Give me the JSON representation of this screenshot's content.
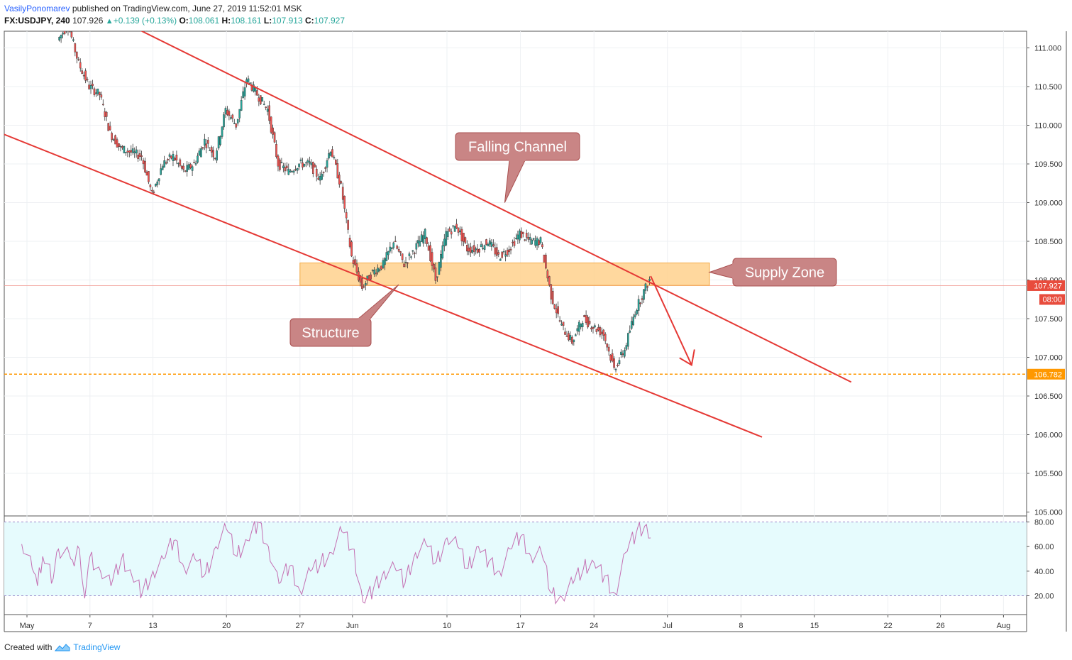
{
  "header": {
    "author": "VasilyPonomarev",
    "published_text": "published on TradingView.com, June 27, 2019 11:52:01 MSK",
    "symbol": "FX:USDJPY, 240",
    "last": "107.926",
    "change": "+0.139 (+0.13%)",
    "o_label": "O:",
    "o_value": "108.061",
    "h_label": "H:",
    "h_value": "108.161",
    "l_label": "L:",
    "l_value": "107.913",
    "c_label": "C:",
    "c_value": "107.927"
  },
  "footer": {
    "created_with": "Created with",
    "brand": "TradingView"
  },
  "colors": {
    "up": "#26a69a",
    "down": "#ef5350",
    "channel": "#e53935",
    "supply_fill": "#ffd699",
    "supply_stroke": "#f4a63a",
    "callout_fill": "#c98585",
    "callout_stroke": "#a94f4f",
    "rsi_line": "#c46fb2",
    "rsi_band": "#e6fbfd",
    "dotted": "#ff9800",
    "price_tag": "#e84c3d"
  },
  "chart_data": {
    "type": "candlestick",
    "symbol": "FX:USDJPY",
    "timeframe": "240",
    "y_axis": {
      "min": 105.0,
      "max": 111.2,
      "ticks": [
        "111.000",
        "110.500",
        "110.000",
        "109.500",
        "109.000",
        "108.500",
        "108.000",
        "107.500",
        "107.000",
        "106.500",
        "106.000",
        "105.500",
        "105.000"
      ]
    },
    "x_axis": {
      "labels": [
        {
          "text": "May",
          "day": 0
        },
        {
          "text": "7",
          "day": 6
        },
        {
          "text": "13",
          "day": 12
        },
        {
          "text": "20",
          "day": 19
        },
        {
          "text": "27",
          "day": 26
        },
        {
          "text": "Jun",
          "day": 31
        },
        {
          "text": "10",
          "day": 40
        },
        {
          "text": "17",
          "day": 47
        },
        {
          "text": "24",
          "day": 54
        },
        {
          "text": "Jul",
          "day": 61
        },
        {
          "text": "8",
          "day": 68
        },
        {
          "text": "15",
          "day": 75
        },
        {
          "text": "22",
          "day": 82
        },
        {
          "text": "26",
          "day": 87
        },
        {
          "text": "Aug",
          "day": 93
        }
      ]
    },
    "price_path": [
      [
        3,
        111.1
      ],
      [
        4,
        111.3
      ],
      [
        5,
        110.8
      ],
      [
        6,
        110.5
      ],
      [
        7,
        110.4
      ],
      [
        8,
        109.9
      ],
      [
        9,
        109.7
      ],
      [
        11,
        109.6
      ],
      [
        12,
        109.1
      ],
      [
        13,
        109.5
      ],
      [
        14,
        109.6
      ],
      [
        15,
        109.4
      ],
      [
        16,
        109.5
      ],
      [
        17,
        109.8
      ],
      [
        18,
        109.6
      ],
      [
        19,
        110.2
      ],
      [
        20,
        110.0
      ],
      [
        21,
        110.6
      ],
      [
        22,
        110.4
      ],
      [
        23,
        110.2
      ],
      [
        24,
        109.5
      ],
      [
        25,
        109.4
      ],
      [
        26,
        109.5
      ],
      [
        27,
        109.5
      ],
      [
        28,
        109.3
      ],
      [
        29,
        109.7
      ],
      [
        30,
        109.2
      ],
      [
        31,
        108.3
      ],
      [
        32,
        107.9
      ],
      [
        33,
        108.1
      ],
      [
        34,
        108.2
      ],
      [
        35,
        108.5
      ],
      [
        36,
        108.2
      ],
      [
        37,
        108.4
      ],
      [
        38,
        108.6
      ],
      [
        39,
        108.0
      ],
      [
        40,
        108.6
      ],
      [
        41,
        108.7
      ],
      [
        42,
        108.4
      ],
      [
        43,
        108.4
      ],
      [
        44,
        108.5
      ],
      [
        45,
        108.3
      ],
      [
        46,
        108.4
      ],
      [
        47,
        108.6
      ],
      [
        48,
        108.5
      ],
      [
        49,
        108.5
      ],
      [
        50,
        107.8
      ],
      [
        51,
        107.4
      ],
      [
        52,
        107.2
      ],
      [
        53,
        107.5
      ],
      [
        54,
        107.4
      ],
      [
        55,
        107.3
      ],
      [
        56,
        106.85
      ],
      [
        57,
        107.1
      ],
      [
        58,
        107.6
      ],
      [
        59,
        107.9
      ],
      [
        59.4,
        108.0
      ]
    ],
    "last_price": "107.927",
    "countdown": "08:00",
    "support_price": "106.782",
    "falling_channel": {
      "upper": {
        "from": [
          10,
          111.28
        ],
        "to": [
          78.5,
          106.68
        ]
      },
      "lower": {
        "from": [
          -2.5,
          109.9
        ],
        "to": [
          70,
          105.97
        ]
      }
    },
    "supply_zone": {
      "from_day": 26,
      "to_day": 65,
      "top": 108.22,
      "bottom": 107.93
    },
    "projection_arrow": {
      "from": [
        59.4,
        108.05
      ],
      "to": [
        63.3,
        106.9
      ]
    },
    "annotations": [
      {
        "text": "Falling Channel",
        "anchor": [
          45.5,
          109.0
        ]
      },
      {
        "text": "Supply Zone",
        "anchor": [
          65,
          108.1
        ]
      },
      {
        "text": "Structure",
        "anchor": [
          35.4,
          107.94
        ]
      }
    ],
    "rsi": {
      "bands": [
        20,
        80
      ],
      "ticks": [
        "80.00",
        "60.00",
        "40.00",
        "20.00"
      ],
      "path": [
        [
          -0.5,
          62
        ],
        [
          0.5,
          42
        ],
        [
          1,
          28
        ],
        [
          1.5,
          52
        ],
        [
          2.5,
          34
        ],
        [
          3,
          58
        ],
        [
          4,
          55
        ],
        [
          4.5,
          44
        ],
        [
          5,
          58
        ],
        [
          5.5,
          18
        ],
        [
          6,
          52
        ],
        [
          7,
          40
        ],
        [
          8,
          28
        ],
        [
          9,
          50
        ],
        [
          10,
          36
        ],
        [
          11,
          23
        ],
        [
          12,
          40
        ],
        [
          13,
          50
        ],
        [
          14,
          65
        ],
        [
          15,
          42
        ],
        [
          16,
          50
        ],
        [
          17,
          38
        ],
        [
          18,
          60
        ],
        [
          19,
          74
        ],
        [
          20,
          52
        ],
        [
          21,
          65
        ],
        [
          22,
          80
        ],
        [
          23,
          60
        ],
        [
          24,
          30
        ],
        [
          25,
          44
        ],
        [
          26,
          24
        ],
        [
          27,
          40
        ],
        [
          28,
          48
        ],
        [
          29,
          55
        ],
        [
          30,
          72
        ],
        [
          31,
          58
        ],
        [
          32,
          15
        ],
        [
          33,
          26
        ],
        [
          34,
          40
        ],
        [
          35,
          44
        ],
        [
          36,
          30
        ],
        [
          37,
          55
        ],
        [
          38,
          62
        ],
        [
          39,
          48
        ],
        [
          40,
          67
        ],
        [
          41,
          60
        ],
        [
          42,
          42
        ],
        [
          43,
          60
        ],
        [
          44,
          48
        ],
        [
          45,
          40
        ],
        [
          46,
          58
        ],
        [
          47,
          68
        ],
        [
          48,
          52
        ],
        [
          49,
          55
        ],
        [
          50,
          22
        ],
        [
          51,
          18
        ],
        [
          52,
          30
        ],
        [
          53,
          42
        ],
        [
          54,
          47
        ],
        [
          55,
          36
        ],
        [
          56,
          22
        ],
        [
          57,
          55
        ],
        [
          58,
          70
        ],
        [
          59,
          78
        ],
        [
          59.4,
          67
        ]
      ]
    }
  }
}
